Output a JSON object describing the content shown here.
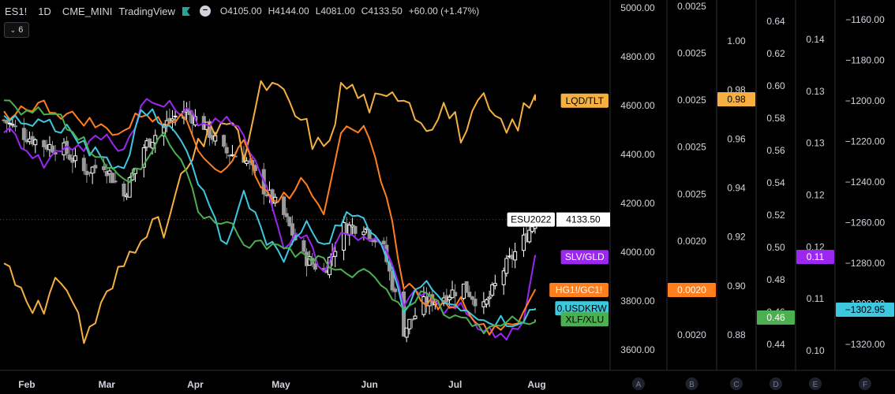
{
  "header": {
    "symbol": "ES1!",
    "interval": "1D",
    "exchange": "CME_MINI",
    "source": "TradingView",
    "open": "O4105.00",
    "high": "H4144.00",
    "low": "L4081.00",
    "close": "C4133.50",
    "change": "+60.00 (+1.47%)",
    "indicator_count": "6",
    "flag_color": "#26a69a"
  },
  "colors": {
    "lqd_tlt": "#f5b041",
    "slv_gld": "#9c27f0",
    "hg_gc": "#ff7f1f",
    "usdkrw": "#3ec8e0",
    "xlf_xlu": "#4caf50",
    "candle_up": "#ffffff",
    "candle_down": "#9a9a9a"
  },
  "price_axis": {
    "ticks": [
      "5000.00",
      "4800.00",
      "4600.00",
      "4400.00",
      "4200.00",
      "4000.00",
      "3800.00",
      "3600.00"
    ],
    "values": [
      5000,
      4800,
      4600,
      4400,
      4200,
      4000,
      3800,
      3600
    ],
    "range": [
      3600,
      5000
    ],
    "labels": [
      {
        "text": "LQD/TLT",
        "value": 4620,
        "color": "#f5b041",
        "dark": true
      },
      {
        "text": "ESU2022",
        "value": 4133.5,
        "color": "#ffffff",
        "dark": true,
        "price": "4133.50"
      },
      {
        "text": "SLV/GLD",
        "value": 3980,
        "color": "#9c27f0",
        "dark": false
      },
      {
        "text": "HG1!/GC1!",
        "value": 3845,
        "color": "#ff7f1f",
        "dark": false
      },
      {
        "text": "0.USDKRW",
        "value": 3770,
        "color": "#3ec8e0",
        "dark": true
      },
      {
        "text": "XLF/XLU",
        "value": 3725,
        "color": "#4caf50",
        "dark": true
      }
    ]
  },
  "scales": [
    {
      "id": "A",
      "ticks": [],
      "label": null
    },
    {
      "id": "B",
      "ticks": [
        "0.0025",
        "0.0025",
        "0.0025",
        "0.0025",
        "0.0025",
        "0.0020",
        "0.0020",
        "0.0020"
      ],
      "label": {
        "text": "0.0020",
        "color": "#ff7f1f",
        "dark": false
      }
    },
    {
      "id": "C",
      "ticks": [
        "1.00",
        "0.98",
        "0.96",
        "0.94",
        "0.92",
        "0.90",
        "0.88"
      ],
      "label": {
        "text": "0.98",
        "color": "#f5b041",
        "dark": true
      }
    },
    {
      "id": "D",
      "ticks": [
        "0.64",
        "0.62",
        "0.60",
        "0.58",
        "0.56",
        "0.54",
        "0.52",
        "0.50",
        "0.48",
        "0.46",
        "0.44"
      ],
      "label": {
        "text": "0.46",
        "color": "#4caf50",
        "dark": false
      }
    },
    {
      "id": "E",
      "ticks": [
        "0.14",
        "0.13",
        "0.13",
        "0.12",
        "0.12",
        "0.11",
        "0.10"
      ],
      "label": {
        "text": "0.11",
        "color": "#9c27f0",
        "dark": false
      }
    },
    {
      "id": "F",
      "ticks": [
        "-1160.00",
        "-1180.00",
        "-1200.00",
        "-1220.00",
        "-1240.00",
        "-1260.00",
        "-1280.00",
        "-1300.00",
        "-1320.00"
      ],
      "label": {
        "text": "-1302.95",
        "color": "#3ec8e0",
        "dark": true
      }
    }
  ],
  "time_axis": [
    "Feb",
    "Mar",
    "Apr",
    "May",
    "Jun",
    "Jul",
    "Aug"
  ],
  "chart_data": {
    "type": "line",
    "x": [
      "2022-01-24",
      "2022-01-31",
      "2022-02-07",
      "2022-02-14",
      "2022-02-21",
      "2022-02-28",
      "2022-03-07",
      "2022-03-14",
      "2022-03-21",
      "2022-03-28",
      "2022-04-04",
      "2022-04-11",
      "2022-04-18",
      "2022-04-25",
      "2022-05-02",
      "2022-05-09",
      "2022-05-16",
      "2022-05-23",
      "2022-05-30",
      "2022-06-06",
      "2022-06-13",
      "2022-06-20",
      "2022-06-27",
      "2022-07-04",
      "2022-07-11",
      "2022-07-18",
      "2022-07-25",
      "2022-07-29"
    ],
    "series": [
      {
        "name": "ESU2022",
        "values": [
          4540,
          4480,
          4440,
          4420,
          4330,
          4360,
          4230,
          4430,
          4520,
          4580,
          4520,
          4410,
          4390,
          4260,
          4150,
          3980,
          3920,
          4100,
          4110,
          4010,
          3680,
          3790,
          3820,
          3860,
          3770,
          3930,
          4050,
          4133.5
        ]
      },
      {
        "name": "LQD/TLT",
        "values": [
          3960,
          3850,
          3740,
          3920,
          3650,
          3790,
          3950,
          4120,
          4080,
          4320,
          4450,
          4560,
          4400,
          4700,
          4630,
          4520,
          4400,
          4700,
          4620,
          4600,
          4670,
          4520,
          4600,
          4480,
          4610,
          4480,
          4570,
          4620
        ]
      },
      {
        "name": "SLV/GLD",
        "values": [
          4510,
          4440,
          4360,
          4440,
          4430,
          4480,
          4420,
          4620,
          4600,
          4580,
          4530,
          4540,
          4480,
          4310,
          4020,
          4090,
          3920,
          4100,
          4050,
          4030,
          3800,
          3840,
          3760,
          3770,
          3680,
          3660,
          3720,
          3980
        ]
      },
      {
        "name": "HG1!/GC1!",
        "values": [
          4560,
          4590,
          4600,
          4560,
          4540,
          4500,
          4490,
          4580,
          4510,
          4590,
          4380,
          4330,
          4450,
          4240,
          4220,
          4310,
          4170,
          4550,
          4500,
          4280,
          3870,
          3810,
          3780,
          3800,
          3680,
          3700,
          3730,
          3845
        ]
      },
      {
        "name": "0.USDKRW",
        "values": [
          4560,
          4530,
          4530,
          4510,
          4430,
          4390,
          4330,
          4600,
          4510,
          4450,
          4240,
          4030,
          4230,
          4070,
          3960,
          4120,
          4010,
          4150,
          4120,
          4010,
          3770,
          3900,
          3790,
          3740,
          3720,
          3720,
          3710,
          3770
        ]
      },
      {
        "name": "XLF/XLU",
        "values": [
          4640,
          4580,
          4580,
          4530,
          4450,
          4350,
          4280,
          4350,
          4480,
          4350,
          4120,
          4130,
          4050,
          4020,
          4040,
          3980,
          3970,
          3900,
          3910,
          3870,
          3780,
          3820,
          3760,
          3720,
          3690,
          3700,
          3730,
          3725
        ]
      }
    ],
    "ylim": [
      3600,
      5000
    ]
  }
}
